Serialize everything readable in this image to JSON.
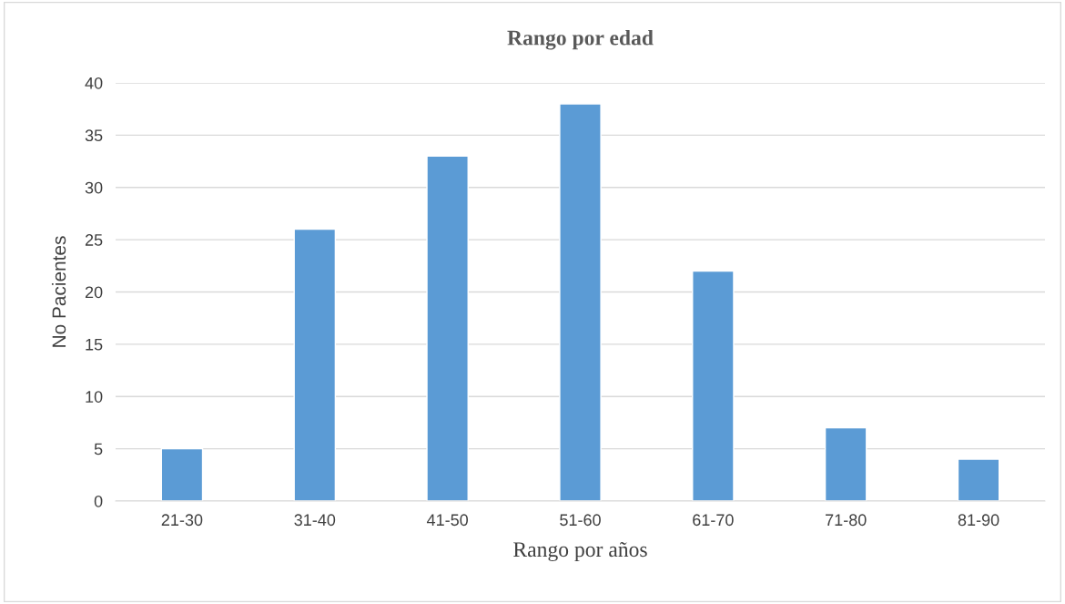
{
  "chart_data": {
    "type": "bar",
    "title": "Rango por edad",
    "xlabel": "Rango por años",
    "ylabel": "No Pacientes",
    "categories": [
      "21-30",
      "31-40",
      "41-50",
      "51-60",
      "61-70",
      "71-80",
      "81-90"
    ],
    "values": [
      5,
      26,
      33,
      38,
      22,
      7,
      4
    ],
    "color": "#5b9bd5",
    "ylim": [
      0,
      40
    ],
    "yticks": [
      0,
      5,
      10,
      15,
      20,
      25,
      30,
      35,
      40
    ],
    "grid": "y",
    "legend": false
  }
}
